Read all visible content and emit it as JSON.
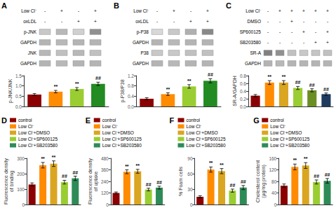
{
  "chart_data": [
    {
      "type": "bar",
      "title": "A",
      "blot": {
        "rows": [
          {
            "label": "Low Cl⁻",
            "values": [
              "-",
              "+",
              "-",
              "+"
            ]
          },
          {
            "label": "oxLDL",
            "values": [
              "-",
              "-",
              "+",
              "+"
            ]
          }
        ],
        "bands": [
          {
            "label": "p-JNK",
            "colors": [
              "#c8c8c8",
              "#b8b8b8",
              "#d0d0d0",
              "#909090"
            ]
          },
          {
            "label": "GAPDH",
            "colors": [
              "#b4b4b4",
              "#b8b8b8",
              "#b4b4b4",
              "#b4b4b4"
            ]
          },
          {
            "label": "JNK",
            "colors": [
              "#b8b8b8",
              "#c0c0c0",
              "#b8b8b8",
              "#c0c0c0"
            ]
          },
          {
            "label": "GAPDH",
            "colors": [
              "#b4b4b4",
              "#b8b8b8",
              "#b4b4b4",
              "#b4b4b4"
            ]
          }
        ]
      },
      "categories": [
        null,
        null,
        null,
        null
      ],
      "values": [
        0.58,
        0.72,
        0.85,
        1.1
      ],
      "errors": [
        0.05,
        0.06,
        0.07,
        0.08
      ],
      "colors": [
        "#8B0000",
        "#FF8C00",
        "#9ACD32",
        "#228B22"
      ],
      "annotations": [
        null,
        "**",
        "**",
        "##"
      ],
      "ylabel": "p-JNK/JNK",
      "ylim": [
        0.0,
        1.5
      ],
      "yticks": [
        {
          "value": 0.0,
          "label": "0.0"
        },
        0.5,
        {
          "value": 1.0,
          "label": "1.0"
        },
        1.5
      ],
      "tick_labels": "y",
      "grid": false
    },
    {
      "type": "bar",
      "title": "B",
      "blot": {
        "rows": [
          {
            "label": "Low Cl⁻",
            "values": [
              "-",
              "+",
              "-",
              "+"
            ]
          },
          {
            "label": "oxLDL",
            "values": [
              "-",
              "-",
              "+",
              "+"
            ]
          }
        ],
        "bands": [
          {
            "label": "p-P38",
            "colors": [
              "#d8d8d8",
              "#c8c8c8",
              "#b0b0b0",
              "#888888"
            ]
          },
          {
            "label": "GAPDH",
            "colors": [
              "#b4b4b4",
              "#b8b8b8",
              "#b4b4b4",
              "#b4b4b4"
            ]
          },
          {
            "label": "P38",
            "colors": [
              "#c8c8c8",
              "#c8c8c8",
              "#c0c0c0",
              "#c0c0c0"
            ]
          },
          {
            "label": "GAPDH",
            "colors": [
              "#b4b4b4",
              "#b8b8b8",
              "#b4b4b4",
              "#b4b4b4"
            ]
          }
        ]
      },
      "categories": [
        null,
        null,
        null,
        null
      ],
      "values": [
        0.3,
        0.48,
        0.78,
        1.0
      ],
      "errors": [
        0.04,
        0.05,
        0.07,
        0.08
      ],
      "colors": [
        "#8B0000",
        "#FF8C00",
        "#9ACD32",
        "#228B22"
      ],
      "annotations": [
        null,
        "**",
        "**",
        "##"
      ],
      "ylabel": "p-P38/P38",
      "ylim": [
        0.0,
        1.2
      ],
      "yticks": [
        {
          "value": 0.0,
          "label": "0.0"
        },
        0.4,
        0.8,
        1.2
      ],
      "tick_labels": "y",
      "grid": false
    },
    {
      "type": "bar",
      "title": "C",
      "blot": {
        "rows": [
          {
            "label": "Low Cl⁻",
            "values": [
              "-",
              "+",
              "+",
              "+",
              "+",
              "+"
            ]
          },
          {
            "label": "DMSO",
            "values": [
              "-",
              "-",
              "+",
              "-",
              "-",
              "-"
            ]
          },
          {
            "label": "SP600125",
            "values": [
              "-",
              "-",
              "-",
              "+",
              "-",
              "+"
            ]
          },
          {
            "label": "SB203580",
            "values": [
              "-",
              "-",
              "-",
              "-",
              "+",
              "+"
            ]
          }
        ],
        "bands": [
          {
            "label": "SR-A",
            "colors": [
              "#808080",
              "#909090",
              "#c0c0c0",
              "#c8c8c8",
              "#c4c4c4",
              "#c0c0c0"
            ]
          },
          {
            "label": "GAPDH",
            "colors": [
              "#b4b4b4",
              "#b8b8b8",
              "#b4b4b4",
              "#b4b4b4",
              "#b4b4b4",
              "#b4b4b4"
            ]
          }
        ]
      },
      "categories": [
        null,
        null,
        null,
        null,
        null,
        null
      ],
      "values": [
        0.28,
        0.62,
        0.62,
        0.48,
        0.42,
        0.32
      ],
      "errors": [
        0.03,
        0.05,
        0.05,
        0.04,
        0.04,
        0.03
      ],
      "colors": [
        "#8B0000",
        "#FF8C00",
        "#DAA520",
        "#9ACD32",
        "#6B8E23",
        "#1E3A5F"
      ],
      "annotations": [
        null,
        "**",
        "**",
        "##",
        "##",
        "##"
      ],
      "ylabel": "SR-A/GAPDH",
      "ylim": [
        0.0,
        0.8
      ],
      "yticks": [
        {
          "value": 0.0,
          "label": "0.0"
        },
        0.2,
        0.4,
        0.6,
        0.8
      ],
      "tick_labels": "y",
      "grid": false
    },
    {
      "type": "bar",
      "title": "D",
      "categories": [
        null,
        null,
        null,
        null,
        null
      ],
      "series": [
        {
          "name": "control",
          "color": "#8B0000",
          "values": [
            130,
            null,
            null,
            null,
            null
          ],
          "errors": [
            10,
            null,
            null,
            null,
            null
          ]
        },
        {
          "name": "Low Cl⁻",
          "color": "#FF8C00",
          "values": [
            null,
            255,
            null,
            null,
            null
          ],
          "errors": [
            null,
            18,
            null,
            null,
            null
          ]
        },
        {
          "name": "Low Cl⁻+DMSO",
          "color": "#DAA520",
          "values": [
            null,
            null,
            265,
            null,
            null
          ],
          "errors": [
            null,
            null,
            18,
            null,
            null
          ]
        },
        {
          "name": "Low Cl⁻+SP600125",
          "color": "#9ACD32",
          "values": [
            null,
            null,
            null,
            145,
            null
          ],
          "errors": [
            null,
            null,
            null,
            12,
            null
          ]
        },
        {
          "name": "Low Cl⁻+SB203580",
          "color": "#2E8B57",
          "values": [
            null,
            null,
            null,
            null,
            170
          ],
          "errors": [
            null,
            null,
            null,
            null,
            14
          ]
        }
      ],
      "annotations": [
        null,
        "**",
        "**",
        "##",
        "##"
      ],
      "ylabel": "Fluorescence density\nof binding",
      "ylim": [
        0,
        300
      ],
      "yticks": [
        0,
        100,
        200,
        300
      ],
      "legend": "upper left",
      "tick_labels": "y",
      "grid": false
    },
    {
      "type": "bar",
      "title": "E",
      "categories": [
        null,
        null,
        null,
        null,
        null
      ],
      "series": [
        {
          "name": "control",
          "color": "#8B0000",
          "values": [
            120,
            null,
            null,
            null,
            null
          ],
          "errors": [
            10,
            null,
            null,
            null,
            null
          ]
        },
        {
          "name": "Low Cl⁻",
          "color": "#FF8C00",
          "values": [
            null,
            340,
            null,
            null,
            null
          ],
          "errors": [
            null,
            20,
            null,
            null,
            null
          ]
        },
        {
          "name": "Low Cl⁻+DMSO",
          "color": "#DAA520",
          "values": [
            null,
            null,
            345,
            null,
            null
          ],
          "errors": [
            null,
            null,
            20,
            null,
            null
          ]
        },
        {
          "name": "Low Cl⁻+SP600125",
          "color": "#9ACD32",
          "values": [
            null,
            null,
            null,
            155,
            null
          ],
          "errors": [
            null,
            null,
            null,
            14,
            null
          ]
        },
        {
          "name": "Low Cl⁻+SB203580",
          "color": "#2E8B57",
          "values": [
            null,
            null,
            null,
            null,
            175
          ],
          "errors": [
            null,
            null,
            null,
            null,
            15
          ]
        }
      ],
      "annotations": [
        null,
        "**",
        "**",
        "##",
        "##"
      ],
      "ylabel": "Fluorescence density\nof uptake",
      "ylim": [
        0,
        480
      ],
      "yticks": [
        0,
        120,
        240,
        360,
        480
      ],
      "legend": "upper left",
      "tick_labels": "y",
      "grid": false
    },
    {
      "type": "bar",
      "title": "F",
      "categories": [
        null,
        null,
        null,
        null,
        null
      ],
      "series": [
        {
          "name": "control",
          "color": "#8B0000",
          "values": [
            15,
            null,
            null,
            null,
            null
          ],
          "errors": [
            2,
            null,
            null,
            null,
            null
          ]
        },
        {
          "name": "Low Cl⁻",
          "color": "#FF8C00",
          "values": [
            null,
            68,
            null,
            null,
            null
          ],
          "errors": [
            null,
            5,
            null,
            null,
            null
          ]
        },
        {
          "name": "Low Cl⁻+DMSO",
          "color": "#DAA520",
          "values": [
            null,
            null,
            65,
            null,
            null
          ],
          "errors": [
            null,
            null,
            5,
            null,
            null
          ]
        },
        {
          "name": "Low Cl⁻+SP600125",
          "color": "#9ACD32",
          "values": [
            null,
            null,
            null,
            27,
            null
          ],
          "errors": [
            null,
            null,
            null,
            3,
            null
          ]
        },
        {
          "name": "Low Cl⁻+SB203580",
          "color": "#2E8B57",
          "values": [
            null,
            null,
            null,
            null,
            33
          ],
          "errors": [
            null,
            null,
            null,
            null,
            4
          ]
        }
      ],
      "annotations": [
        null,
        "**",
        "**",
        "##",
        "##"
      ],
      "ylabel": "% Foam cells",
      "ylim": [
        0,
        90
      ],
      "yticks": [
        0,
        30,
        60,
        90
      ],
      "legend": "upper left",
      "tick_labels": "y",
      "grid": false
    },
    {
      "type": "bar",
      "title": "G",
      "categories": [
        null,
        null,
        null,
        null,
        null
      ],
      "series": [
        {
          "name": "control",
          "color": "#8B0000",
          "values": [
            65,
            null,
            null,
            null,
            null
          ],
          "errors": [
            6,
            null,
            null,
            null,
            null
          ]
        },
        {
          "name": "Low Cl⁻",
          "color": "#FF8C00",
          "values": [
            null,
            130,
            null,
            null,
            null
          ],
          "errors": [
            null,
            10,
            null,
            null,
            null
          ]
        },
        {
          "name": "Low Cl⁻+DMSO",
          "color": "#DAA520",
          "values": [
            null,
            null,
            135,
            null,
            null
          ],
          "errors": [
            null,
            null,
            10,
            null,
            null
          ]
        },
        {
          "name": "Low Cl⁻+SP600125",
          "color": "#9ACD32",
          "values": [
            null,
            null,
            null,
            78,
            null
          ],
          "errors": [
            null,
            null,
            null,
            7,
            null
          ]
        },
        {
          "name": "Low Cl⁻+SB203580",
          "color": "#2E8B57",
          "values": [
            null,
            null,
            null,
            null,
            82
          ],
          "errors": [
            null,
            null,
            null,
            null,
            8
          ]
        }
      ],
      "annotations": [
        null,
        "**",
        "**",
        "##",
        "##"
      ],
      "ylabel": "Cholesterol content\n(μg/mg protein)",
      "ylim": [
        0,
        160
      ],
      "yticks": [
        0,
        40,
        80,
        120,
        160
      ],
      "legend": "upper left",
      "tick_labels": "y",
      "grid": false
    }
  ]
}
